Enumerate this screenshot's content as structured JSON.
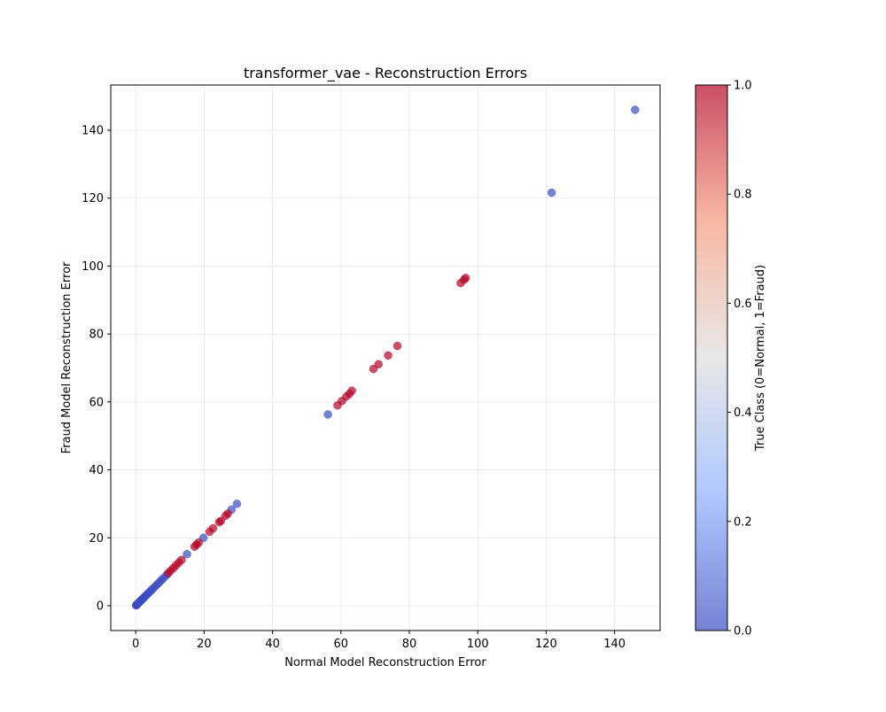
{
  "chart_data": {
    "type": "scatter",
    "title": "transformer_vae - Reconstruction Errors",
    "xlabel": "Normal Model Reconstruction Error",
    "ylabel": "Fraud Model Reconstruction Error",
    "xlim": [
      -7.3,
      153.3
    ],
    "ylim": [
      -7.3,
      153.3
    ],
    "x_ticks": [
      0,
      20,
      40,
      60,
      80,
      100,
      120,
      140
    ],
    "y_ticks": [
      0,
      20,
      40,
      60,
      80,
      100,
      120,
      140
    ],
    "grid": true,
    "colorbar": {
      "label": "True Class (0=Normal, 1=Fraud)",
      "range": [
        0.0,
        1.0
      ],
      "ticks": [
        "0.0",
        "0.2",
        "0.4",
        "0.6",
        "0.8",
        "1.0"
      ],
      "colormap": "coolwarm",
      "low_color": "#3b4cc0",
      "mid_color": "#dddddd",
      "high_color": "#b40426"
    },
    "series": [
      {
        "class": 0,
        "color": "#3b4cc0",
        "points": [
          [
            0.1,
            0.1
          ],
          [
            0.2,
            0.2
          ],
          [
            0.3,
            0.3
          ],
          [
            0.4,
            0.4
          ],
          [
            0.5,
            0.5
          ],
          [
            0.6,
            0.6
          ],
          [
            0.8,
            0.8
          ],
          [
            1.0,
            1.0
          ],
          [
            1.2,
            1.2
          ],
          [
            1.5,
            1.5
          ],
          [
            1.8,
            1.8
          ],
          [
            2.1,
            2.1
          ],
          [
            2.5,
            2.5
          ],
          [
            2.9,
            2.9
          ],
          [
            3.3,
            3.3
          ],
          [
            3.7,
            3.7
          ],
          [
            4.2,
            4.2
          ],
          [
            4.7,
            4.7
          ],
          [
            5.2,
            5.2
          ],
          [
            5.8,
            5.8
          ],
          [
            6.4,
            6.4
          ],
          [
            7.0,
            7.0
          ],
          [
            7.6,
            7.6
          ],
          [
            8.2,
            8.2
          ],
          [
            9.0,
            9.0
          ],
          [
            15.0,
            15.2
          ],
          [
            19.8,
            20.0
          ],
          [
            28.0,
            28.3
          ],
          [
            29.6,
            30.0
          ],
          [
            56.2,
            56.3
          ],
          [
            121.6,
            121.6
          ],
          [
            146.0,
            146.0
          ]
        ]
      },
      {
        "class": 1,
        "color": "#b40426",
        "points": [
          [
            9.5,
            9.6
          ],
          [
            10.2,
            10.3
          ],
          [
            11.0,
            11.1
          ],
          [
            11.8,
            11.9
          ],
          [
            12.6,
            12.7
          ],
          [
            13.4,
            13.5
          ],
          [
            17.2,
            17.4
          ],
          [
            17.8,
            18.0
          ],
          [
            18.4,
            18.6
          ],
          [
            21.6,
            21.8
          ],
          [
            22.6,
            22.8
          ],
          [
            24.4,
            24.6
          ],
          [
            24.9,
            25.0
          ],
          [
            26.3,
            26.5
          ],
          [
            26.9,
            27.1
          ],
          [
            59.0,
            59.0
          ],
          [
            60.3,
            60.3
          ],
          [
            61.6,
            61.6
          ],
          [
            62.5,
            62.4
          ],
          [
            63.2,
            63.3
          ],
          [
            69.5,
            69.7
          ],
          [
            71.0,
            71.1
          ],
          [
            73.8,
            73.7
          ],
          [
            76.5,
            76.5
          ],
          [
            95.0,
            95.0
          ],
          [
            96.0,
            96.0
          ],
          [
            96.5,
            96.5
          ]
        ]
      }
    ]
  }
}
